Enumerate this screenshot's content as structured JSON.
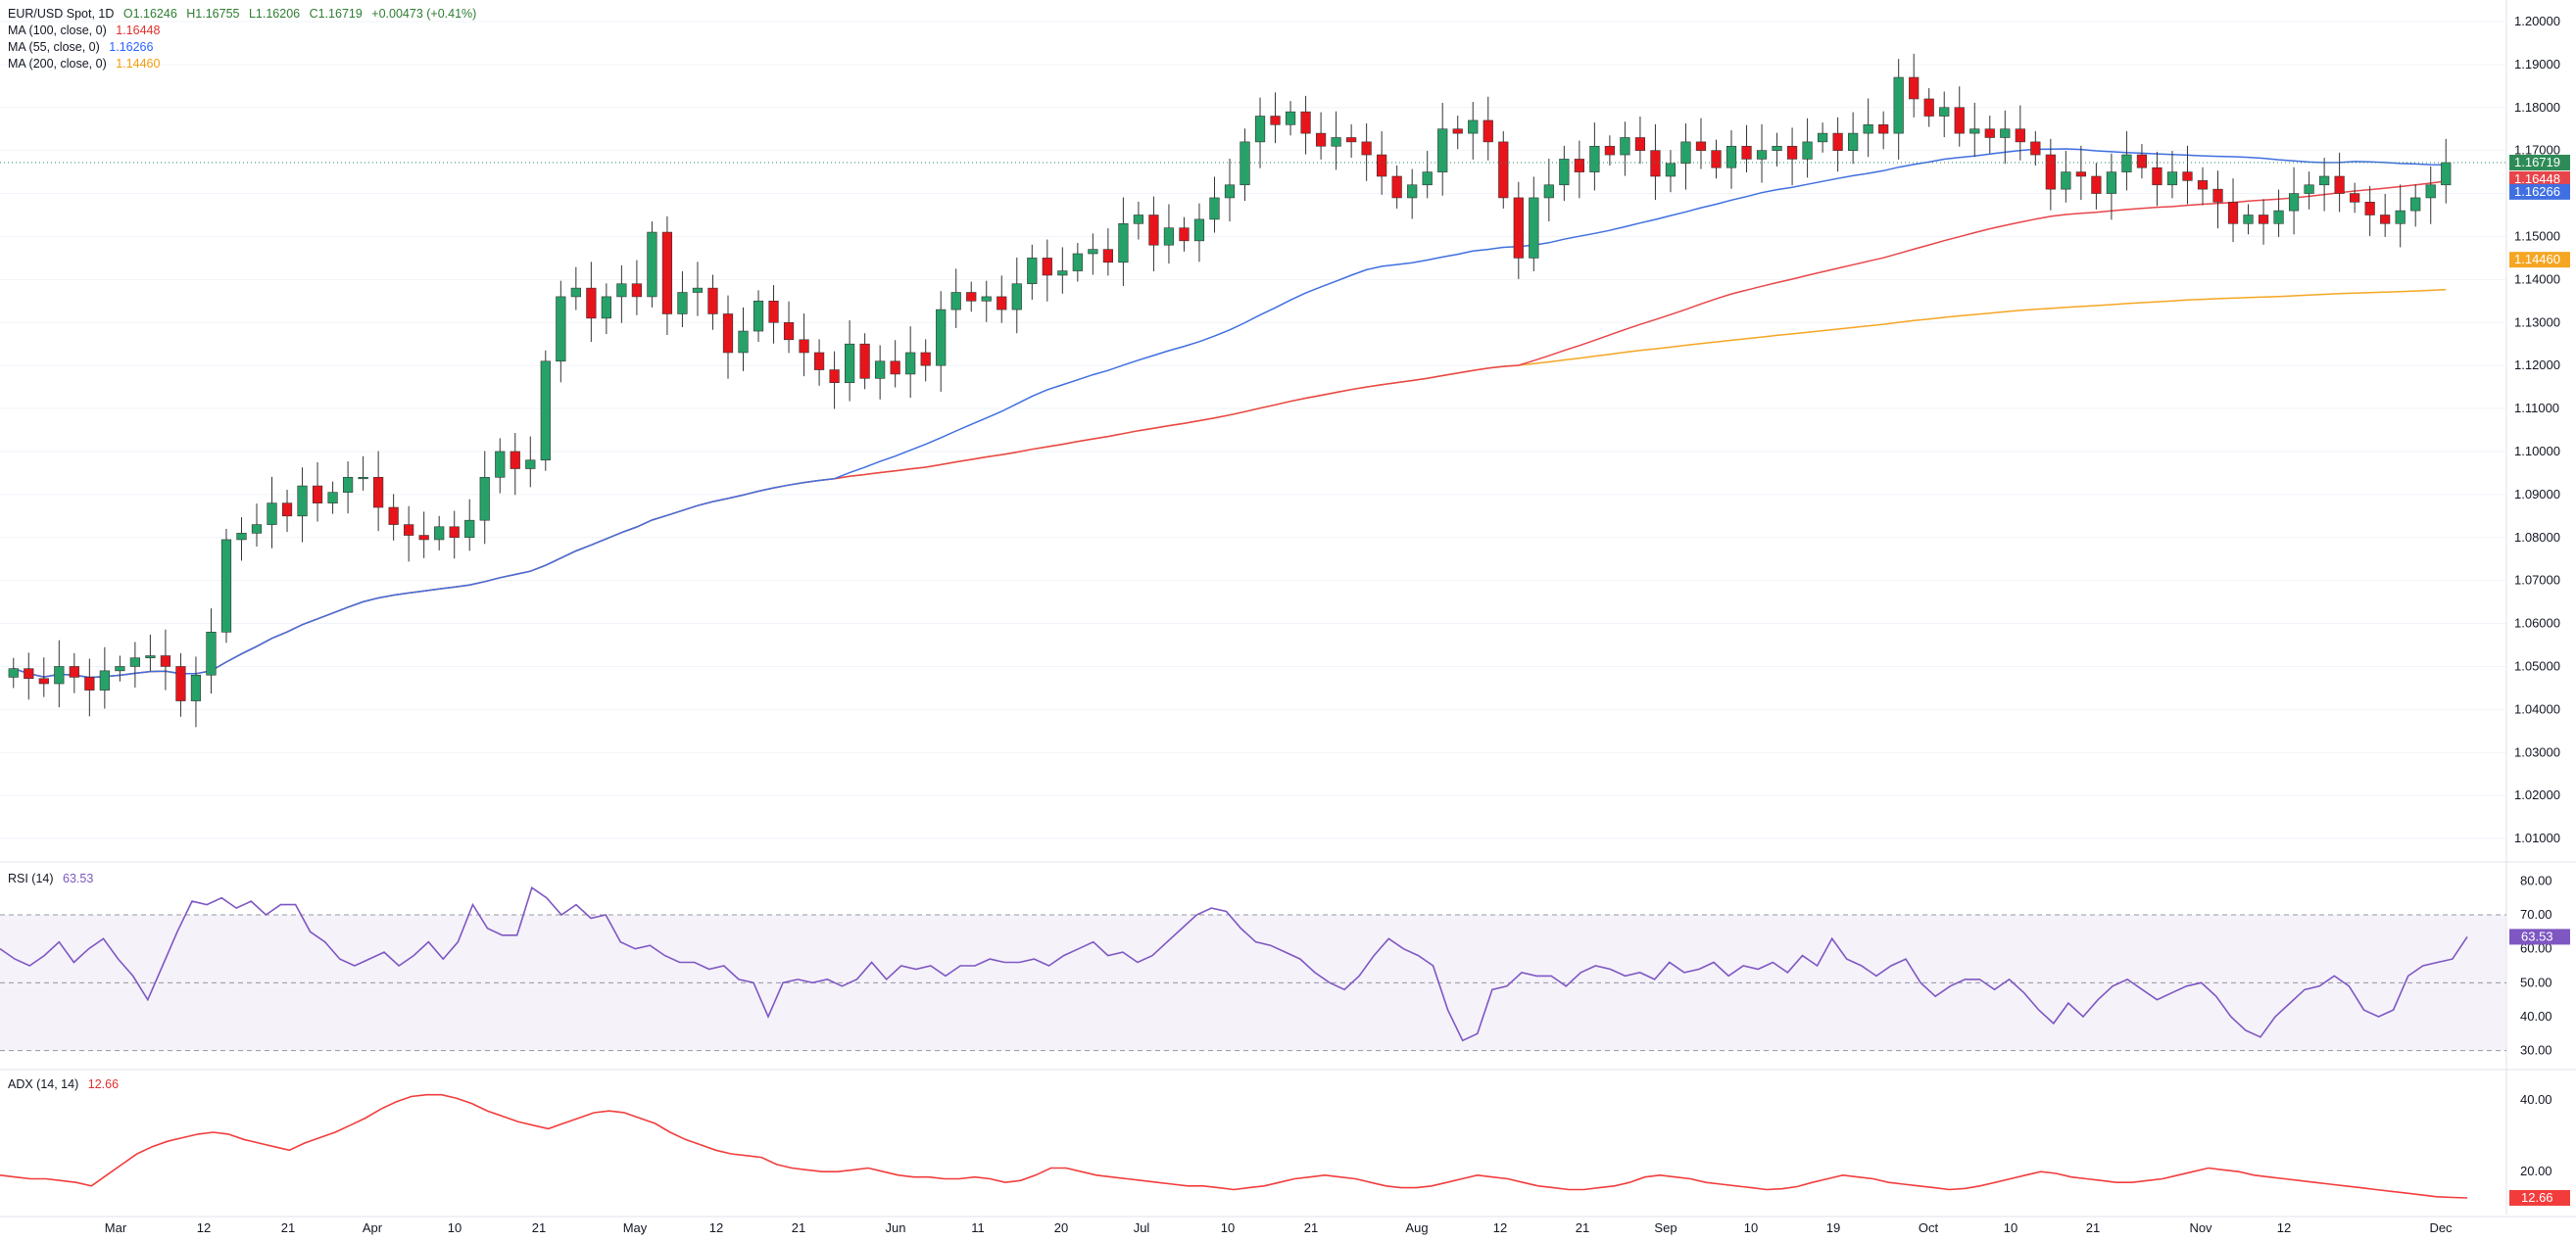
{
  "header": {
    "symbol": "EUR/USD Spot, 1D",
    "open": "O1.16246",
    "high": "H1.16755",
    "low": "L1.16206",
    "close": "C1.16719",
    "change": "+0.00473 (+0.41%)"
  },
  "indicators": {
    "ma100_label": "MA (100, close, 0)",
    "ma100_value": "1.16448",
    "ma55_label": "MA (55, close, 0)",
    "ma55_value": "1.16266",
    "ma200_label": "MA (200, close, 0)",
    "ma200_value": "1.14460",
    "rsi_label": "RSI (14)",
    "rsi_value": "63.53",
    "adx_label": "ADX (14, 14)",
    "adx_value": "12.66"
  },
  "colors": {
    "up": "#26a269",
    "down": "#e8141b",
    "ma100": "#e8454a",
    "ma55": "#3f6fe0",
    "ma200": "#f5a623",
    "rsi": "#7e57c2",
    "adx": "#f23c3c",
    "last": "#2e8b57"
  },
  "chart_data": [
    {
      "type": "candlestick",
      "title": "EUR/USD Spot, 1D",
      "ylim": [
        1.005,
        1.205
      ],
      "yticks": [
        "1.20000",
        "1.19000",
        "1.18000",
        "1.17000",
        "1.16000",
        "1.15000",
        "1.14000",
        "1.13000",
        "1.12000",
        "1.11000",
        "1.10000",
        "1.09000",
        "1.08000",
        "1.07000",
        "1.06000",
        "1.05000",
        "1.04000",
        "1.03000",
        "1.02000",
        "1.01000"
      ],
      "xticks": [
        "Mar",
        "12",
        "21",
        "Apr",
        "10",
        "21",
        "May",
        "12",
        "21",
        "Jun",
        "11",
        "20",
        "Jul",
        "10",
        "21",
        "Aug",
        "12",
        "21",
        "Sep",
        "10",
        "19",
        "Oct",
        "10",
        "21",
        "Nov",
        "12",
        "Dec"
      ],
      "x_dates": [
        "2025-03-01",
        "2025-03-12",
        "2025-03-21",
        "2025-04-01",
        "2025-04-10",
        "2025-04-21",
        "2025-05-01",
        "2025-05-12",
        "2025-05-21",
        "2025-06-01",
        "2025-06-11",
        "2025-06-20",
        "2025-07-01",
        "2025-07-10",
        "2025-07-21",
        "2025-08-01",
        "2025-08-12",
        "2025-08-21",
        "2025-09-01",
        "2025-09-10",
        "2025-09-19",
        "2025-10-01",
        "2025-10-10",
        "2025-10-21",
        "2025-11-01",
        "2025-11-12",
        "2025-12-01"
      ],
      "close_series": [
        1.0495,
        1.0472,
        1.046,
        1.05,
        1.0475,
        1.0445,
        1.049,
        1.05,
        1.052,
        1.0525,
        1.05,
        1.042,
        1.048,
        1.058,
        1.0795,
        1.081,
        1.083,
        1.088,
        1.085,
        1.092,
        1.088,
        1.0905,
        1.094,
        1.094,
        1.087,
        1.083,
        1.0805,
        1.0795,
        1.0825,
        1.08,
        1.084,
        1.094,
        1.1,
        1.096,
        1.098,
        1.121,
        1.136,
        1.138,
        1.131,
        1.136,
        1.139,
        1.136,
        1.151,
        1.132,
        1.137,
        1.138,
        1.132,
        1.123,
        1.128,
        1.135,
        1.13,
        1.126,
        1.123,
        1.119,
        1.116,
        1.125,
        1.117,
        1.121,
        1.118,
        1.123,
        1.12,
        1.133,
        1.137,
        1.135,
        1.136,
        1.133,
        1.139,
        1.145,
        1.141,
        1.142,
        1.146,
        1.147,
        1.144,
        1.153,
        1.155,
        1.148,
        1.152,
        1.149,
        1.154,
        1.159,
        1.162,
        1.172,
        1.178,
        1.176,
        1.179,
        1.174,
        1.171,
        1.173,
        1.172,
        1.169,
        1.164,
        1.159,
        1.162,
        1.165,
        1.175,
        1.174,
        1.177,
        1.172,
        1.159,
        1.145,
        1.159,
        1.162,
        1.168,
        1.165,
        1.171,
        1.169,
        1.173,
        1.17,
        1.164,
        1.167,
        1.172,
        1.17,
        1.166,
        1.171,
        1.168,
        1.17,
        1.171,
        1.168,
        1.172,
        1.174,
        1.17,
        1.174,
        1.176,
        1.174,
        1.187,
        1.182,
        1.178,
        1.18,
        1.174,
        1.175,
        1.173,
        1.175,
        1.172,
        1.169,
        1.161,
        1.165,
        1.164,
        1.16,
        1.165,
        1.169,
        1.166,
        1.162,
        1.165,
        1.163,
        1.161,
        1.158,
        1.153,
        1.155,
        1.153,
        1.156,
        1.16,
        1.162,
        1.164,
        1.16,
        1.158,
        1.155,
        1.153,
        1.156,
        1.159,
        1.162,
        1.16719
      ],
      "open": "1.16246",
      "high": "1.16755",
      "low": "1.16206",
      "close": "1.16719",
      "price_tags": [
        "1.16719",
        "1.16448",
        "1.16266",
        "1.14460"
      ],
      "series": [
        {
          "name": "MA (100, close, 0)",
          "last": 1.16448
        },
        {
          "name": "MA (55, close, 0)",
          "last": 1.16266
        },
        {
          "name": "MA (200, close, 0)",
          "last": 1.1446
        }
      ]
    },
    {
      "type": "line",
      "title": "RSI (14)",
      "ylim": [
        25,
        85
      ],
      "yticks": [
        "80.00",
        "70.00",
        "60.00",
        "50.00",
        "40.00",
        "30.00"
      ],
      "bands": [
        70,
        50,
        30
      ],
      "values": [
        60,
        57,
        55,
        58,
        62,
        56,
        60,
        63,
        57,
        52,
        45,
        55,
        65,
        74,
        73,
        75,
        72,
        74,
        70,
        73,
        73,
        65,
        62,
        57,
        55,
        57,
        59,
        55,
        58,
        62,
        57,
        62,
        73,
        66,
        64,
        64,
        78,
        75,
        70,
        73,
        69,
        70,
        62,
        60,
        61,
        58,
        56,
        56,
        54,
        55,
        51,
        50,
        40,
        50,
        51,
        50,
        51,
        49,
        51,
        56,
        51,
        55,
        54,
        55,
        52,
        55,
        55,
        57,
        56,
        56,
        57,
        55,
        58,
        60,
        62,
        58,
        59,
        56,
        58,
        62,
        66,
        70,
        72,
        71,
        66,
        62,
        61,
        59,
        57,
        53,
        50,
        48,
        52,
        58,
        63,
        60,
        58,
        55,
        42,
        33,
        35,
        48,
        49,
        53,
        52,
        52,
        49,
        53,
        55,
        54,
        52,
        53,
        51,
        56,
        53,
        54,
        56,
        52,
        55,
        54,
        56,
        53,
        58,
        55,
        63,
        57,
        55,
        52,
        55,
        57,
        50,
        46,
        49,
        51,
        51,
        48,
        51,
        47,
        42,
        38,
        44,
        40,
        45,
        49,
        51,
        48,
        45,
        47,
        49,
        50,
        46,
        40,
        36,
        34,
        40,
        44,
        48,
        49,
        52,
        49,
        42,
        40,
        42,
        52,
        55,
        56,
        57,
        63.53
      ],
      "last": 63.53
    },
    {
      "type": "line",
      "title": "ADX (14, 14)",
      "ylim": [
        8,
        48
      ],
      "yticks": [
        "40.00",
        "20.00"
      ],
      "values": [
        19,
        18.5,
        18,
        18,
        17.5,
        17,
        16,
        19,
        22,
        25,
        27,
        28.5,
        29.5,
        30.5,
        31,
        30.5,
        29,
        28,
        27,
        26,
        28,
        29.5,
        31,
        33,
        35,
        37.5,
        39.5,
        41,
        41.5,
        41.5,
        40.5,
        39,
        37,
        35.5,
        34,
        33,
        32,
        33.5,
        35,
        36.5,
        37,
        36.5,
        35,
        33.5,
        31,
        29,
        27.5,
        26,
        25,
        24.5,
        24,
        22,
        21,
        20.5,
        20,
        20,
        20.5,
        21,
        20,
        19,
        18.5,
        18.5,
        18,
        18,
        18.5,
        18,
        17,
        17.5,
        19,
        21,
        21,
        20,
        19,
        18.5,
        18,
        17.5,
        17,
        16.5,
        16,
        16,
        15.5,
        15,
        15.5,
        16,
        17,
        18,
        18.5,
        19,
        18.5,
        18,
        17,
        16,
        15.5,
        15.5,
        16,
        17,
        18,
        19,
        18.5,
        18,
        17,
        16,
        15.5,
        15,
        15,
        15.5,
        16,
        17,
        18.5,
        19,
        18.5,
        18,
        17,
        16.5,
        16,
        15.5,
        15,
        15.2,
        15.8,
        17,
        18,
        19,
        18.5,
        18,
        17,
        16.5,
        16,
        15.5,
        15,
        15.3,
        16,
        17,
        18,
        19,
        20,
        19.5,
        18.5,
        18,
        17.5,
        17,
        17,
        17.5,
        18,
        19,
        20,
        21,
        20.5,
        20,
        19,
        18.5,
        18,
        17.5,
        17,
        16.5,
        16,
        15.5,
        15,
        14.5,
        14,
        13.5,
        13,
        12.8,
        12.66
      ],
      "last": 12.66
    }
  ]
}
